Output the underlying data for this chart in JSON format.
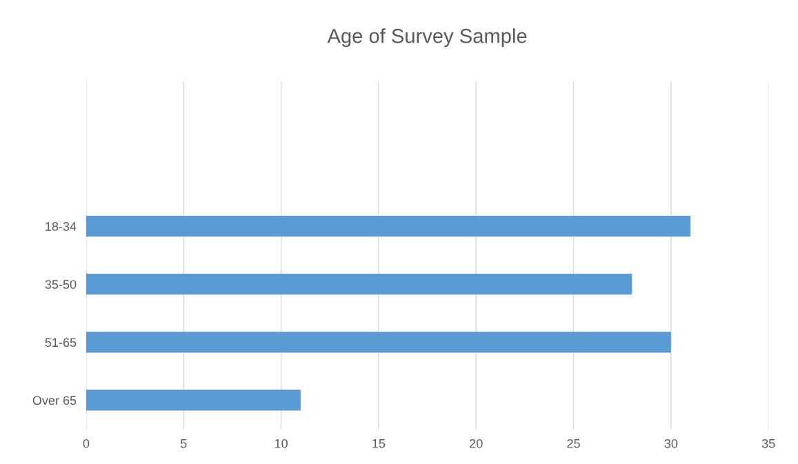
{
  "chart_data": {
    "type": "bar",
    "orientation": "horizontal",
    "title": "Age of Survey Sample",
    "categories": [
      null,
      null,
      "18-34",
      "35-50",
      "51-65",
      "Over 65"
    ],
    "values": [
      null,
      null,
      31,
      28,
      30,
      11
    ],
    "color": "#5b9bd5",
    "xlim": [
      0,
      35
    ],
    "xticks": [
      0,
      5,
      10,
      15,
      20,
      25,
      30,
      35
    ],
    "grid": "x",
    "legend": false
  }
}
